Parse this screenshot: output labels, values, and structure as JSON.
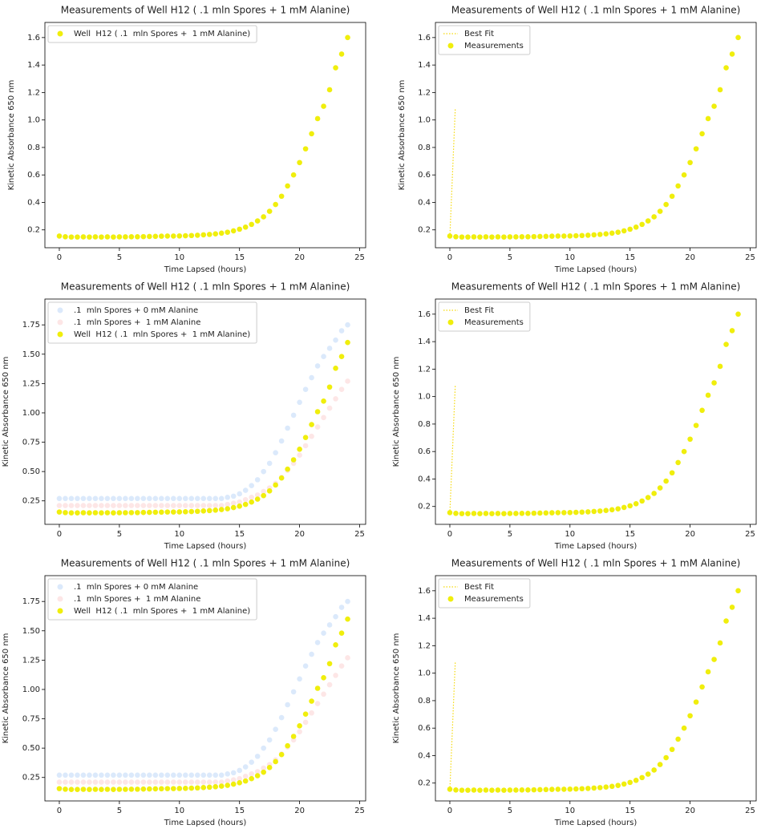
{
  "chart_data": [
    {
      "type": "scatter",
      "title": "Measurements of Well  H12 ( .1  mln Spores +  1 mM Alanine)",
      "x_label": "Time Lapsed (hours)",
      "y_label": "Kinetic Absorbance 650 nm",
      "x": [
        0,
        0.5,
        1,
        1.5,
        2,
        2.5,
        3,
        3.5,
        4,
        4.5,
        5,
        5.5,
        6,
        6.5,
        7,
        7.5,
        8,
        8.5,
        9,
        9.5,
        10,
        10.5,
        11,
        11.5,
        12,
        12.5,
        13,
        13.5,
        14,
        14.5,
        15,
        15.5,
        16,
        16.5,
        17,
        17.5,
        18,
        18.5,
        19,
        19.5,
        20,
        20.5,
        21,
        21.5,
        22,
        22.5,
        23,
        23.5,
        24
      ],
      "series": [
        {
          "name": "Well  H12 ( .1  mln Spores +  1 mM Alanine)",
          "kind": "scatter",
          "color": "#f0ee0c",
          "values": [
            0.155,
            0.15,
            0.148,
            0.148,
            0.149,
            0.148,
            0.149,
            0.148,
            0.149,
            0.148,
            0.149,
            0.149,
            0.15,
            0.15,
            0.151,
            0.152,
            0.153,
            0.154,
            0.155,
            0.155,
            0.156,
            0.157,
            0.159,
            0.161,
            0.164,
            0.167,
            0.171,
            0.176,
            0.183,
            0.193,
            0.205,
            0.22,
            0.24,
            0.265,
            0.295,
            0.335,
            0.385,
            0.445,
            0.52,
            0.6,
            0.69,
            0.79,
            0.9,
            1.01,
            1.1,
            1.22,
            1.38,
            1.48,
            1.6
          ]
        }
      ],
      "xlim": [
        -1.2,
        25.5
      ],
      "ylim": [
        0.07,
        1.71
      ],
      "xticks": [
        0,
        5,
        10,
        15,
        20,
        25
      ],
      "yticks": [
        0.2,
        0.4,
        0.6,
        0.8,
        {
          "value": 1,
          "label": "1.0"
        },
        1.2,
        1.4,
        1.6
      ],
      "legend": "upper left"
    },
    {
      "type": "scatter",
      "title": "Measurements of Well  H12 ( .1  mln Spores +  1 mM Alanine)",
      "x_label": "Time Lapsed (hours)",
      "y_label": "Kinetic Absorbance 650 nm",
      "x": [
        0,
        0.5,
        1,
        1.5,
        2,
        2.5,
        3,
        3.5,
        4,
        4.5,
        5,
        5.5,
        6,
        6.5,
        7,
        7.5,
        8,
        8.5,
        9,
        9.5,
        10,
        10.5,
        11,
        11.5,
        12,
        12.5,
        13,
        13.5,
        14,
        14.5,
        15,
        15.5,
        16,
        16.5,
        17,
        17.5,
        18,
        18.5,
        19,
        19.5,
        20,
        20.5,
        21,
        21.5,
        22,
        22.5,
        23,
        23.5,
        24
      ],
      "series": [
        {
          "name": "Best Fit",
          "kind": "line",
          "color": "#f5d90a",
          "x": [
            0,
            0.45
          ],
          "values": [
            0.15,
            1.08
          ]
        },
        {
          "name": "Measurements",
          "kind": "scatter",
          "color": "#f0ee0c",
          "values": [
            0.155,
            0.15,
            0.148,
            0.148,
            0.149,
            0.148,
            0.149,
            0.148,
            0.149,
            0.148,
            0.149,
            0.149,
            0.15,
            0.15,
            0.151,
            0.152,
            0.153,
            0.154,
            0.155,
            0.155,
            0.156,
            0.157,
            0.159,
            0.161,
            0.164,
            0.167,
            0.171,
            0.176,
            0.183,
            0.193,
            0.205,
            0.22,
            0.24,
            0.265,
            0.295,
            0.335,
            0.385,
            0.445,
            0.52,
            0.6,
            0.69,
            0.79,
            0.9,
            1.01,
            1.1,
            1.22,
            1.38,
            1.48,
            1.6
          ]
        }
      ],
      "xlim": [
        -1.2,
        25.5
      ],
      "ylim": [
        0.07,
        1.71
      ],
      "xticks": [
        0,
        5,
        10,
        15,
        20,
        25
      ],
      "yticks": [
        0.2,
        0.4,
        0.6,
        0.8,
        {
          "value": 1,
          "label": "1.0"
        },
        1.2,
        1.4,
        1.6
      ],
      "legend": "upper left"
    },
    {
      "type": "scatter",
      "title": "Measurements of Well  H12 ( .1  mln Spores +  1 mM Alanine)",
      "x_label": "Time Lapsed (hours)",
      "y_label": "Kinetic Absorbance 650 nm",
      "x": [
        0,
        0.5,
        1,
        1.5,
        2,
        2.5,
        3,
        3.5,
        4,
        4.5,
        5,
        5.5,
        6,
        6.5,
        7,
        7.5,
        8,
        8.5,
        9,
        9.5,
        10,
        10.5,
        11,
        11.5,
        12,
        12.5,
        13,
        13.5,
        14,
        14.5,
        15,
        15.5,
        16,
        16.5,
        17,
        17.5,
        18,
        18.5,
        19,
        19.5,
        20,
        20.5,
        21,
        21.5,
        22,
        22.5,
        23,
        23.5,
        24
      ],
      "series": [
        {
          "name": ".1  mln Spores + 0 mM Alanine",
          "kind": "scatter",
          "color": "#dbe9fb",
          "values": [
            0.27,
            0.27,
            0.27,
            0.27,
            0.27,
            0.27,
            0.27,
            0.27,
            0.27,
            0.27,
            0.27,
            0.27,
            0.27,
            0.27,
            0.27,
            0.27,
            0.27,
            0.27,
            0.27,
            0.27,
            0.27,
            0.27,
            0.27,
            0.27,
            0.27,
            0.27,
            0.27,
            0.27,
            0.28,
            0.29,
            0.31,
            0.34,
            0.38,
            0.43,
            0.5,
            0.57,
            0.66,
            0.76,
            0.87,
            0.98,
            1.09,
            1.2,
            1.3,
            1.4,
            1.48,
            1.55,
            1.62,
            1.7,
            1.75
          ]
        },
        {
          "name": ".1  mln Spores +  1 mM Alanine",
          "kind": "scatter",
          "color": "#fde6e6",
          "values": [
            0.21,
            0.21,
            0.21,
            0.21,
            0.21,
            0.21,
            0.21,
            0.21,
            0.21,
            0.21,
            0.21,
            0.21,
            0.21,
            0.21,
            0.21,
            0.21,
            0.21,
            0.21,
            0.21,
            0.21,
            0.21,
            0.21,
            0.21,
            0.21,
            0.21,
            0.21,
            0.21,
            0.21,
            0.22,
            0.23,
            0.24,
            0.26,
            0.28,
            0.3,
            0.33,
            0.36,
            0.4,
            0.45,
            0.51,
            0.57,
            0.64,
            0.72,
            0.8,
            0.88,
            0.96,
            1.04,
            1.12,
            1.2,
            1.27
          ]
        },
        {
          "name": "Well  H12 ( .1  mln Spores +  1 mM Alanine)",
          "kind": "scatter",
          "color": "#f0ee0c",
          "values": [
            0.155,
            0.15,
            0.148,
            0.148,
            0.149,
            0.148,
            0.149,
            0.148,
            0.149,
            0.148,
            0.149,
            0.149,
            0.15,
            0.15,
            0.151,
            0.152,
            0.153,
            0.154,
            0.155,
            0.155,
            0.156,
            0.157,
            0.159,
            0.161,
            0.164,
            0.167,
            0.171,
            0.176,
            0.183,
            0.193,
            0.205,
            0.22,
            0.24,
            0.265,
            0.295,
            0.335,
            0.385,
            0.445,
            0.52,
            0.6,
            0.69,
            0.79,
            0.9,
            1.01,
            1.1,
            1.22,
            1.38,
            1.48,
            1.6
          ]
        }
      ],
      "xlim": [
        -1.2,
        25.5
      ],
      "ylim": [
        0.05,
        1.97
      ],
      "xticks": [
        0,
        5,
        10,
        15,
        20,
        25
      ],
      "yticks": [
        0.25,
        {
          "value": 0.5,
          "label": "0.50"
        },
        0.75,
        {
          "value": 1,
          "label": "1.00"
        },
        1.25,
        {
          "value": 1.5,
          "label": "1.50"
        },
        1.75
      ],
      "legend": "upper left"
    },
    {
      "type": "scatter",
      "title": "Measurements of Well  H12 ( .1  mln Spores +  1 mM Alanine)",
      "x_label": "Time Lapsed (hours)",
      "y_label": "Kinetic Absorbance 650 nm",
      "x": [
        0,
        0.5,
        1,
        1.5,
        2,
        2.5,
        3,
        3.5,
        4,
        4.5,
        5,
        5.5,
        6,
        6.5,
        7,
        7.5,
        8,
        8.5,
        9,
        9.5,
        10,
        10.5,
        11,
        11.5,
        12,
        12.5,
        13,
        13.5,
        14,
        14.5,
        15,
        15.5,
        16,
        16.5,
        17,
        17.5,
        18,
        18.5,
        19,
        19.5,
        20,
        20.5,
        21,
        21.5,
        22,
        22.5,
        23,
        23.5,
        24
      ],
      "series": [
        {
          "name": "Best Fit",
          "kind": "line",
          "color": "#f5d90a",
          "x": [
            0,
            0.45
          ],
          "values": [
            0.15,
            1.08
          ]
        },
        {
          "name": "Measurements",
          "kind": "scatter",
          "color": "#f0ee0c",
          "values": [
            0.155,
            0.15,
            0.148,
            0.148,
            0.149,
            0.148,
            0.149,
            0.148,
            0.149,
            0.148,
            0.149,
            0.149,
            0.15,
            0.15,
            0.151,
            0.152,
            0.153,
            0.154,
            0.155,
            0.155,
            0.156,
            0.157,
            0.159,
            0.161,
            0.164,
            0.167,
            0.171,
            0.176,
            0.183,
            0.193,
            0.205,
            0.22,
            0.24,
            0.265,
            0.295,
            0.335,
            0.385,
            0.445,
            0.52,
            0.6,
            0.69,
            0.79,
            0.9,
            1.01,
            1.1,
            1.22,
            1.38,
            1.48,
            1.6
          ]
        }
      ],
      "xlim": [
        -1.2,
        25.5
      ],
      "ylim": [
        0.07,
        1.71
      ],
      "xticks": [
        0,
        5,
        10,
        15,
        20,
        25
      ],
      "yticks": [
        0.2,
        0.4,
        0.6,
        0.8,
        {
          "value": 1,
          "label": "1.0"
        },
        1.2,
        1.4,
        1.6
      ],
      "legend": "upper left"
    },
    {
      "type": "scatter",
      "title": "Measurements of Well  H12 ( .1  mln Spores +  1 mM Alanine)",
      "x_label": "Time Lapsed (hours)",
      "y_label": "Kinetic Absorbance 650 nm",
      "x": [
        0,
        0.5,
        1,
        1.5,
        2,
        2.5,
        3,
        3.5,
        4,
        4.5,
        5,
        5.5,
        6,
        6.5,
        7,
        7.5,
        8,
        8.5,
        9,
        9.5,
        10,
        10.5,
        11,
        11.5,
        12,
        12.5,
        13,
        13.5,
        14,
        14.5,
        15,
        15.5,
        16,
        16.5,
        17,
        17.5,
        18,
        18.5,
        19,
        19.5,
        20,
        20.5,
        21,
        21.5,
        22,
        22.5,
        23,
        23.5,
        24
      ],
      "series": [
        {
          "name": ".1  mln Spores + 0 mM Alanine",
          "kind": "scatter",
          "color": "#dbe9fb",
          "values": [
            0.27,
            0.27,
            0.27,
            0.27,
            0.27,
            0.27,
            0.27,
            0.27,
            0.27,
            0.27,
            0.27,
            0.27,
            0.27,
            0.27,
            0.27,
            0.27,
            0.27,
            0.27,
            0.27,
            0.27,
            0.27,
            0.27,
            0.27,
            0.27,
            0.27,
            0.27,
            0.27,
            0.27,
            0.28,
            0.29,
            0.31,
            0.34,
            0.38,
            0.43,
            0.5,
            0.57,
            0.66,
            0.76,
            0.87,
            0.98,
            1.09,
            1.2,
            1.3,
            1.4,
            1.48,
            1.55,
            1.62,
            1.7,
            1.75
          ]
        },
        {
          "name": ".1  mln Spores +  1 mM Alanine",
          "kind": "scatter",
          "color": "#fde6e6",
          "values": [
            0.21,
            0.21,
            0.21,
            0.21,
            0.21,
            0.21,
            0.21,
            0.21,
            0.21,
            0.21,
            0.21,
            0.21,
            0.21,
            0.21,
            0.21,
            0.21,
            0.21,
            0.21,
            0.21,
            0.21,
            0.21,
            0.21,
            0.21,
            0.21,
            0.21,
            0.21,
            0.21,
            0.21,
            0.22,
            0.23,
            0.24,
            0.26,
            0.28,
            0.3,
            0.33,
            0.36,
            0.4,
            0.45,
            0.51,
            0.57,
            0.64,
            0.72,
            0.8,
            0.88,
            0.96,
            1.04,
            1.12,
            1.2,
            1.27
          ]
        },
        {
          "name": "Well  H12 ( .1  mln Spores +  1 mM Alanine)",
          "kind": "scatter",
          "color": "#f0ee0c",
          "values": [
            0.155,
            0.15,
            0.148,
            0.148,
            0.149,
            0.148,
            0.149,
            0.148,
            0.149,
            0.148,
            0.149,
            0.149,
            0.15,
            0.15,
            0.151,
            0.152,
            0.153,
            0.154,
            0.155,
            0.155,
            0.156,
            0.157,
            0.159,
            0.161,
            0.164,
            0.167,
            0.171,
            0.176,
            0.183,
            0.193,
            0.205,
            0.22,
            0.24,
            0.265,
            0.295,
            0.335,
            0.385,
            0.445,
            0.52,
            0.6,
            0.69,
            0.79,
            0.9,
            1.01,
            1.1,
            1.22,
            1.38,
            1.48,
            1.6
          ]
        }
      ],
      "xlim": [
        -1.2,
        25.5
      ],
      "ylim": [
        0.05,
        1.97
      ],
      "xticks": [
        0,
        5,
        10,
        15,
        20,
        25
      ],
      "yticks": [
        0.25,
        {
          "value": 0.5,
          "label": "0.50"
        },
        0.75,
        {
          "value": 1,
          "label": "1.00"
        },
        1.25,
        {
          "value": 1.5,
          "label": "1.50"
        },
        1.75
      ],
      "legend": "upper left"
    },
    {
      "type": "scatter",
      "title": "Measurements of Well  H12 ( .1  mln Spores +  1 mM Alanine)",
      "x_label": "Time Lapsed (hours)",
      "y_label": "Kinetic Absorbance 650 nm",
      "x": [
        0,
        0.5,
        1,
        1.5,
        2,
        2.5,
        3,
        3.5,
        4,
        4.5,
        5,
        5.5,
        6,
        6.5,
        7,
        7.5,
        8,
        8.5,
        9,
        9.5,
        10,
        10.5,
        11,
        11.5,
        12,
        12.5,
        13,
        13.5,
        14,
        14.5,
        15,
        15.5,
        16,
        16.5,
        17,
        17.5,
        18,
        18.5,
        19,
        19.5,
        20,
        20.5,
        21,
        21.5,
        22,
        22.5,
        23,
        23.5,
        24
      ],
      "series": [
        {
          "name": "Best Fit",
          "kind": "line",
          "color": "#f5d90a",
          "x": [
            0,
            0.45
          ],
          "values": [
            0.15,
            1.08
          ]
        },
        {
          "name": "Measurements",
          "kind": "scatter",
          "color": "#f0ee0c",
          "values": [
            0.155,
            0.15,
            0.148,
            0.148,
            0.149,
            0.148,
            0.149,
            0.148,
            0.149,
            0.148,
            0.149,
            0.149,
            0.15,
            0.15,
            0.151,
            0.152,
            0.153,
            0.154,
            0.155,
            0.155,
            0.156,
            0.157,
            0.159,
            0.161,
            0.164,
            0.167,
            0.171,
            0.176,
            0.183,
            0.193,
            0.205,
            0.22,
            0.24,
            0.265,
            0.295,
            0.335,
            0.385,
            0.445,
            0.52,
            0.6,
            0.69,
            0.79,
            0.9,
            1.01,
            1.1,
            1.22,
            1.38,
            1.48,
            1.6
          ]
        }
      ],
      "xlim": [
        -1.2,
        25.5
      ],
      "ylim": [
        0.07,
        1.71
      ],
      "xticks": [
        0,
        5,
        10,
        15,
        20,
        25
      ],
      "yticks": [
        0.2,
        0.4,
        0.6,
        0.8,
        {
          "value": 1,
          "label": "1.0"
        },
        1.2,
        1.4,
        1.6
      ],
      "legend": "upper left"
    }
  ]
}
